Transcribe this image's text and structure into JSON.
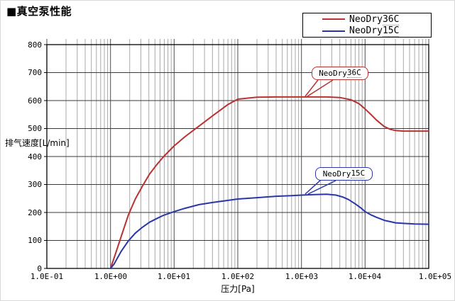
{
  "title": "■真空泵性能",
  "legend": {
    "items": [
      {
        "prefix": "NeoDry",
        "suffix": "36C",
        "color": "#b83232"
      },
      {
        "prefix": "NeoDry",
        "suffix": "15C",
        "color": "#2a35a8"
      }
    ]
  },
  "callouts": [
    {
      "prefix": "NeoDry",
      "suffix": "36C",
      "color": "#b83232"
    },
    {
      "prefix": "NeoDry",
      "suffix": "15C",
      "color": "#2a35a8"
    }
  ],
  "chart_data": {
    "type": "line",
    "title": "■真空泵性能",
    "xlabel": "压力[Pa]",
    "ylabel": "排气速度[L/min]",
    "x_scale": "log",
    "xlim": [
      0.1,
      100000
    ],
    "ylim": [
      0,
      800
    ],
    "x_tick_labels": [
      "1.0E-01",
      "1.0E+00",
      "1.0E+01",
      "1.0E+02",
      "1.0E+03",
      "1.0E+04",
      "1.0E+05"
    ],
    "x_tick_values": [
      0.1,
      1,
      10,
      100,
      1000,
      10000,
      100000
    ],
    "y_tick_labels": [
      "0",
      "100",
      "200",
      "300",
      "400",
      "500",
      "600",
      "700",
      "800"
    ],
    "y_tick_values": [
      0,
      100,
      200,
      300,
      400,
      500,
      600,
      700,
      800
    ],
    "grid": {
      "major": true,
      "minor_x": true,
      "minor_y": false
    },
    "legend_position": "top-right",
    "series": [
      {
        "name": "NeoDry36C",
        "color": "#b83232",
        "points": [
          [
            1.0,
            0
          ],
          [
            1.14,
            38
          ],
          [
            1.47,
            114
          ],
          [
            1.9,
            190
          ],
          [
            2.45,
            248
          ],
          [
            3.17,
            294
          ],
          [
            4.1,
            337
          ],
          [
            5.3,
            370
          ],
          [
            6.85,
            400
          ],
          [
            10,
            438
          ],
          [
            14.8,
            471
          ],
          [
            24.7,
            509
          ],
          [
            41,
            547
          ],
          [
            69,
            585
          ],
          [
            100,
            605
          ],
          [
            200,
            612
          ],
          [
            400,
            613
          ],
          [
            1000,
            613
          ],
          [
            2500,
            613
          ],
          [
            4000,
            611
          ],
          [
            6000,
            603
          ],
          [
            8000,
            589
          ],
          [
            10000,
            570
          ],
          [
            12500,
            549
          ],
          [
            15000,
            531
          ],
          [
            20000,
            507
          ],
          [
            25000,
            497
          ],
          [
            30000,
            493
          ],
          [
            40000,
            491
          ],
          [
            60000,
            491
          ],
          [
            100000,
            491
          ]
        ]
      },
      {
        "name": "NeoDry15C",
        "color": "#2a35a8",
        "points": [
          [
            1.0,
            0
          ],
          [
            1.14,
            16
          ],
          [
            1.47,
            61
          ],
          [
            1.9,
            98
          ],
          [
            2.45,
            126
          ],
          [
            3.17,
            147
          ],
          [
            4.1,
            165
          ],
          [
            5.3,
            178
          ],
          [
            6.85,
            190
          ],
          [
            10,
            203
          ],
          [
            14.8,
            215
          ],
          [
            24.7,
            228
          ],
          [
            41,
            236
          ],
          [
            69,
            243
          ],
          [
            100,
            248
          ],
          [
            200,
            253
          ],
          [
            400,
            258
          ],
          [
            700,
            260
          ],
          [
            1000,
            262
          ],
          [
            1600,
            264
          ],
          [
            2500,
            265
          ],
          [
            3500,
            262
          ],
          [
            4500,
            255
          ],
          [
            5500,
            246
          ],
          [
            7000,
            231
          ],
          [
            8500,
            217
          ],
          [
            10000,
            203
          ],
          [
            12500,
            191
          ],
          [
            15000,
            183
          ],
          [
            20000,
            172
          ],
          [
            25000,
            167
          ],
          [
            30000,
            163
          ],
          [
            40000,
            161
          ],
          [
            60000,
            159
          ],
          [
            100000,
            158
          ]
        ]
      }
    ]
  }
}
